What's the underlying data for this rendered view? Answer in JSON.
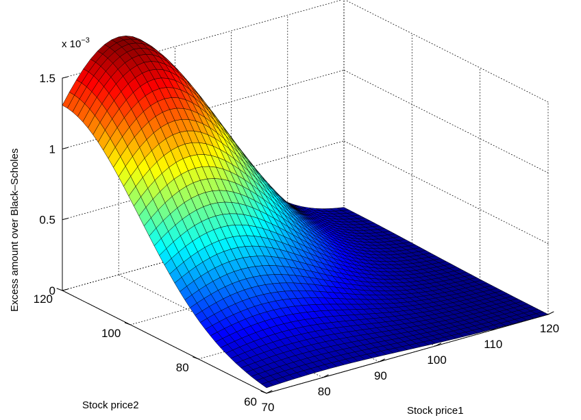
{
  "chart_data": {
    "type": "surface",
    "title": "",
    "xlabel": "Stock price1",
    "ylabel": "Stock price2",
    "zlabel": "Excess amount over Black–Scholes",
    "z_exponent_label": "x 10",
    "z_exponent_power": "−3",
    "xlim": [
      70,
      120
    ],
    "ylim": [
      60,
      120
    ],
    "zlim": [
      0,
      1.5
    ],
    "x_ticks": [
      70,
      80,
      90,
      100,
      110,
      120
    ],
    "y_ticks": [
      60,
      80,
      100,
      120
    ],
    "z_ticks": [
      0,
      0.5,
      1,
      1.5
    ],
    "x_tick_labels": [
      "70",
      "80",
      "90",
      "100",
      "110",
      "120"
    ],
    "y_tick_labels": [
      "60",
      "80",
      "100",
      "120"
    ],
    "z_tick_labels": [
      "0",
      "0.5",
      "1",
      "1.5"
    ],
    "grid": true,
    "colormap": "jet",
    "z_peak": 1.68,
    "z_peak_at": [
      80,
      120
    ],
    "z_ridge_along_y_at_x": 80,
    "z_spread_x": 20,
    "z_spread_y": 32
  }
}
